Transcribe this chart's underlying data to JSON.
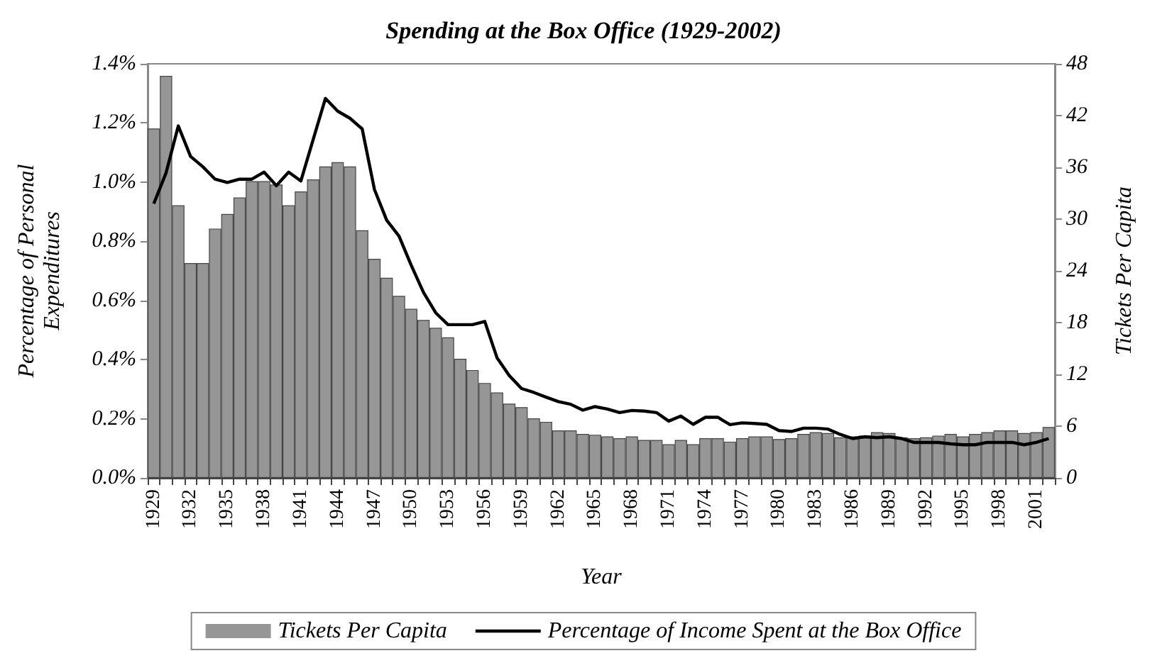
{
  "chart_data": {
    "type": "bar",
    "title": "Spending at the Box Office (1929-2002)",
    "xlabel": "Year",
    "ylabel": "Percentage of Personal Expenditures",
    "y2label": "Tickets Per Capita",
    "categories": [
      "1929",
      null,
      null,
      "1932",
      null,
      null,
      "1935",
      null,
      null,
      "1938",
      null,
      null,
      "1941",
      null,
      null,
      "1944",
      null,
      null,
      "1947",
      null,
      null,
      "1950",
      null,
      null,
      "1953",
      null,
      null,
      "1956",
      null,
      null,
      "1959",
      null,
      null,
      "1962",
      null,
      null,
      "1965",
      null,
      null,
      "1968",
      null,
      null,
      "1971",
      null,
      null,
      "1974",
      null,
      null,
      "1977",
      null,
      null,
      "1980",
      null,
      null,
      "1983",
      null,
      null,
      "1986",
      null,
      null,
      "1989",
      null,
      null,
      "1992",
      null,
      null,
      "1995",
      null,
      null,
      "1998",
      null,
      null,
      "2001",
      null
    ],
    "series": [
      {
        "name": "Tickets Per Capita",
        "axis": "y2",
        "color": "#969696",
        "values": [
          40.5,
          46.6,
          31.6,
          24.9,
          24.9,
          28.9,
          30.6,
          32.5,
          34.4,
          34.4,
          34.0,
          31.6,
          33.2,
          34.6,
          36.1,
          36.6,
          36.1,
          28.7,
          25.4,
          23.2,
          21.1,
          19.6,
          18.3,
          17.4,
          16.3,
          13.8,
          12.5,
          11.0,
          9.9,
          8.6,
          8.2,
          6.9,
          6.5,
          5.5,
          5.5,
          5.1,
          5.0,
          4.8,
          4.6,
          4.8,
          4.4,
          4.4,
          3.9,
          4.4,
          3.9,
          4.6,
          4.6,
          4.2,
          4.6,
          4.8,
          4.8,
          4.5,
          4.6,
          5.1,
          5.3,
          5.2,
          4.7,
          4.8,
          4.9,
          5.3,
          5.2,
          4.7,
          4.6,
          4.7,
          4.9,
          5.1,
          4.8,
          5.1,
          5.3,
          5.5,
          5.5,
          5.2,
          5.3,
          5.9
        ]
      },
      {
        "name": "Percentage of Income Spent at the Box Office",
        "type": "line",
        "color": "#000000",
        "values": [
          0.927,
          1.031,
          1.19,
          1.087,
          1.052,
          1.01,
          0.999,
          1.01,
          1.01,
          1.034,
          0.988,
          1.034,
          1.004,
          1.144,
          1.283,
          1.24,
          1.216,
          1.18,
          0.975,
          0.871,
          0.818,
          0.719,
          0.627,
          0.558,
          0.518,
          0.518,
          0.518,
          0.529,
          0.406,
          0.346,
          0.302,
          0.289,
          0.273,
          0.258,
          0.249,
          0.229,
          0.241,
          0.233,
          0.221,
          0.228,
          0.226,
          0.221,
          0.192,
          0.209,
          0.181,
          0.205,
          0.205,
          0.18,
          0.186,
          0.184,
          0.181,
          0.16,
          0.157,
          0.168,
          0.168,
          0.165,
          0.147,
          0.133,
          0.139,
          0.136,
          0.139,
          0.133,
          0.12,
          0.12,
          0.12,
          0.115,
          0.112,
          0.112,
          0.12,
          0.12,
          0.12,
          0.112,
          0.12,
          0.133
        ]
      }
    ],
    "ylim": [
      0,
      1.4
    ],
    "yticks": [
      {
        "value": 0,
        "label": "0.0%"
      },
      {
        "value": 0.2,
        "label": "0.2%"
      },
      {
        "value": 0.4,
        "label": "0.4%"
      },
      {
        "value": 0.6,
        "label": "0.6%"
      },
      {
        "value": 0.8,
        "label": "0.8%"
      },
      {
        "value": 1.0,
        "label": "1.0%"
      },
      {
        "value": 1.2,
        "label": "1.2%"
      },
      {
        "value": 1.4,
        "label": "1.4%"
      }
    ],
    "y2lim": [
      0,
      48
    ],
    "y2ticks": [
      0,
      6,
      12,
      18,
      24,
      30,
      36,
      42,
      48
    ],
    "grid": false,
    "legend": "bottom",
    "marker": "none"
  }
}
